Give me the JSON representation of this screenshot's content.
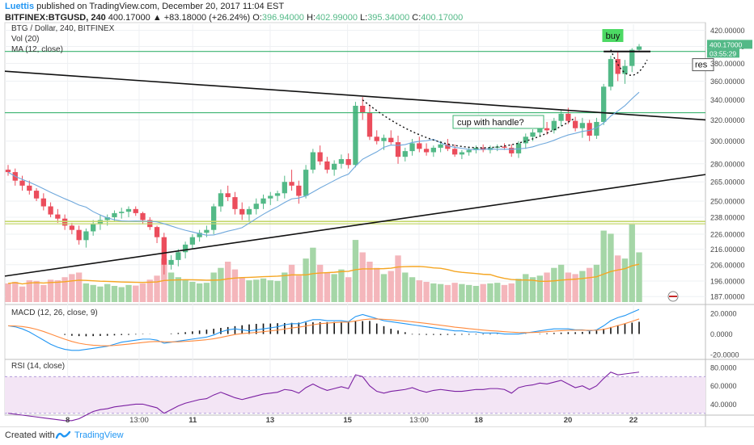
{
  "header": {
    "author": "Luettis",
    "published": "published on TradingView.com, December 20, 2017 11:04 EST",
    "symbol": "BITFINEX:BTGUSD, 240",
    "price": "400.17000",
    "change": "▲ +83.18000 (+26.24%)",
    "o_label": "O:",
    "o_value": "396.94000",
    "h_label": "H:",
    "h_value": "402.99000",
    "l_label": "L:",
    "l_value": "395.34000",
    "c_label": "C:",
    "c_value": "400.17000"
  },
  "legend": {
    "title": "BTG / Dollar, 240, BITFINEX",
    "vol": "Vol (20)",
    "ma": "MA (12, close)"
  },
  "colors": {
    "up": "#53b987",
    "down": "#eb4d5c",
    "vol_up": "#a5d6a7",
    "vol_down": "#f4b6bb",
    "ma": "#6fa8dc",
    "vol_ma": "#f5a623",
    "macd": "#2196f3",
    "signal": "#ff8a3d",
    "rsi": "#7b1fa2",
    "rsi_band": "#f3e5f5",
    "hline_green": "#3cb371",
    "hline_yellow": "#c5d86d"
  },
  "annotations": {
    "buy": "buy",
    "cup": "cup with handle?",
    "res": "res",
    "price_tag": "400.17000",
    "time_tag": "03:55:29"
  },
  "panes": {
    "macd_label": "MACD (12, 26, close, 9)",
    "rsi_label": "RSI (14, close)"
  },
  "axes": {
    "price_ticks": [
      "420.00000",
      "400.00000",
      "380.00000",
      "360.00000",
      "340.00000",
      "320.00000",
      "300.00000",
      "280.00000",
      "265.00000",
      "250.00000",
      "238.00000",
      "226.00000",
      "216.00000",
      "206.00000",
      "196.00000",
      "187.00000"
    ],
    "macd_ticks": [
      "20.0000",
      "0.0000",
      "-20.0000"
    ],
    "rsi_ticks": [
      "80.0000",
      "60.0000",
      "40.0000"
    ],
    "x_ticks": [
      "8",
      "13:00",
      "11",
      "13",
      "15",
      "13:00",
      "18",
      "20",
      "22"
    ]
  },
  "footer": {
    "created_with": "Created with",
    "brand": "TradingView"
  },
  "chart_data": {
    "type": "candlestick",
    "title": "BTG / Dollar, 240, BITFINEX",
    "scale": "log",
    "ylim": [
      183,
      428
    ],
    "candles": [
      [
        275,
        279,
        270,
        273
      ],
      [
        273,
        276,
        262,
        266
      ],
      [
        266,
        270,
        258,
        262
      ],
      [
        262,
        266,
        255,
        258
      ],
      [
        258,
        260,
        250,
        252
      ],
      [
        252,
        256,
        243,
        246
      ],
      [
        246,
        249,
        238,
        240
      ],
      [
        240,
        244,
        234,
        237
      ],
      [
        237,
        240,
        229,
        232
      ],
      [
        232,
        234,
        226,
        229
      ],
      [
        229,
        232,
        219,
        222
      ],
      [
        222,
        230,
        217,
        228
      ],
      [
        228,
        236,
        225,
        233
      ],
      [
        233,
        240,
        229,
        236
      ],
      [
        236,
        240,
        232,
        238
      ],
      [
        238,
        243,
        235,
        241
      ],
      [
        241,
        245,
        237,
        242
      ],
      [
        242,
        246,
        238,
        244
      ],
      [
        244,
        246,
        239,
        241
      ],
      [
        241,
        242,
        233,
        236
      ],
      [
        236,
        238,
        229,
        231
      ],
      [
        231,
        232,
        220,
        224
      ],
      [
        224,
        227,
        200,
        206
      ],
      [
        206,
        212,
        203,
        209
      ],
      [
        209,
        216,
        205,
        214
      ],
      [
        214,
        221,
        210,
        219
      ],
      [
        219,
        226,
        216,
        224
      ],
      [
        224,
        229,
        221,
        227
      ],
      [
        227,
        232,
        224,
        229
      ],
      [
        229,
        248,
        226,
        246
      ],
      [
        246,
        259,
        242,
        256
      ],
      [
        256,
        262,
        250,
        253
      ],
      [
        253,
        257,
        240,
        244
      ],
      [
        244,
        249,
        236,
        240
      ],
      [
        240,
        246,
        235,
        244
      ],
      [
        244,
        252,
        240,
        248
      ],
      [
        248,
        255,
        244,
        252
      ],
      [
        252,
        257,
        247,
        254
      ],
      [
        254,
        258,
        250,
        256
      ],
      [
        256,
        270,
        252,
        265
      ],
      [
        265,
        275,
        258,
        262
      ],
      [
        262,
        266,
        248,
        254
      ],
      [
        254,
        279,
        252,
        275
      ],
      [
        275,
        293,
        272,
        290
      ],
      [
        290,
        296,
        279,
        282
      ],
      [
        282,
        286,
        272,
        275
      ],
      [
        275,
        283,
        270,
        280
      ],
      [
        280,
        288,
        276,
        284
      ],
      [
        284,
        289,
        276,
        279
      ],
      [
        279,
        338,
        277,
        334
      ],
      [
        334,
        343,
        320,
        327
      ],
      [
        327,
        335,
        301,
        304
      ],
      [
        304,
        310,
        297,
        300
      ],
      [
        300,
        306,
        292,
        303
      ],
      [
        303,
        310,
        297,
        299
      ],
      [
        299,
        305,
        280,
        286
      ],
      [
        286,
        294,
        282,
        291
      ],
      [
        291,
        302,
        287,
        298
      ],
      [
        298,
        304,
        290,
        293
      ],
      [
        293,
        298,
        287,
        290
      ],
      [
        290,
        296,
        286,
        294
      ],
      [
        294,
        300,
        290,
        297
      ],
      [
        297,
        302,
        291,
        293
      ],
      [
        293,
        297,
        286,
        288
      ],
      [
        288,
        292,
        284,
        290
      ],
      [
        290,
        294,
        287,
        292
      ],
      [
        292,
        296,
        289,
        294
      ],
      [
        294,
        297,
        290,
        292
      ],
      [
        292,
        296,
        289,
        294
      ],
      [
        294,
        297,
        291,
        295
      ],
      [
        295,
        298,
        292,
        294
      ],
      [
        294,
        297,
        286,
        289
      ],
      [
        289,
        300,
        285,
        298
      ],
      [
        298,
        307,
        293,
        304
      ],
      [
        304,
        311,
        300,
        308
      ],
      [
        308,
        315,
        304,
        312
      ],
      [
        312,
        318,
        306,
        310
      ],
      [
        310,
        322,
        307,
        319
      ],
      [
        319,
        330,
        314,
        326
      ],
      [
        326,
        332,
        316,
        319
      ],
      [
        319,
        323,
        309,
        312
      ],
      [
        312,
        322,
        303,
        317
      ],
      [
        317,
        320,
        300,
        305
      ],
      [
        305,
        322,
        302,
        318
      ],
      [
        318,
        357,
        315,
        354
      ],
      [
        354,
        389,
        350,
        385
      ],
      [
        385,
        393,
        360,
        368
      ],
      [
        368,
        384,
        357,
        377
      ],
      [
        377,
        398,
        370,
        396
      ],
      [
        396,
        403,
        395,
        400
      ]
    ],
    "volume": [
      60,
      65,
      50,
      70,
      68,
      55,
      72,
      70,
      80,
      90,
      95,
      60,
      55,
      50,
      58,
      52,
      48,
      55,
      53,
      60,
      72,
      85,
      140,
      95,
      80,
      70,
      65,
      60,
      62,
      95,
      110,
      130,
      105,
      80,
      70,
      72,
      76,
      70,
      68,
      95,
      120,
      85,
      140,
      175,
      120,
      95,
      90,
      105,
      80,
      200,
      160,
      130,
      110,
      90,
      100,
      150,
      95,
      80,
      70,
      65,
      60,
      58,
      55,
      62,
      58,
      55,
      52,
      58,
      60,
      62,
      55,
      60,
      75,
      90,
      80,
      85,
      95,
      110,
      120,
      95,
      90,
      100,
      110,
      120,
      230,
      220,
      150,
      140,
      250,
      160
    ],
    "macd_histogram": [
      0,
      0,
      0,
      0,
      0,
      0,
      0,
      0,
      -0.5,
      -1,
      -1.2,
      -1.3,
      -1.2,
      -1.1,
      -1,
      -0.8,
      -0.6,
      -0.5,
      -0.3,
      -0.2,
      -0.1,
      0,
      0,
      0.3,
      0.6,
      1,
      1.5,
      2,
      2.5,
      3,
      3.5,
      4,
      4.5,
      5,
      5.5,
      5.8,
      6,
      6,
      6.2,
      6.3,
      6.4,
      6.5,
      6.6,
      6.7,
      6.8,
      6.8,
      6.9,
      7,
      7,
      7.2,
      7.4,
      7.5,
      6,
      4.5,
      3,
      2,
      1,
      -0.3,
      -0.4,
      -0.5,
      -0.5,
      -0.6,
      -0.5,
      -0.5,
      -0.4,
      -0.4,
      -0.3,
      -0.3,
      -0.3,
      -0.2,
      -0.2,
      -0.2,
      -0.1,
      -0.1,
      0,
      0.2,
      0.4,
      0.6,
      0.8,
      1,
      1,
      1.2,
      1.5,
      2,
      3,
      4,
      5,
      6,
      6.5,
      7
    ],
    "rsi": [
      30,
      29,
      28,
      27,
      26,
      25,
      24,
      23,
      22,
      22,
      24,
      28,
      32,
      34,
      35,
      37,
      38,
      39,
      40,
      40,
      38,
      36,
      30,
      34,
      38,
      41,
      43,
      45,
      46,
      50,
      53,
      50,
      47,
      45,
      47,
      49,
      51,
      52,
      53,
      56,
      55,
      52,
      58,
      62,
      58,
      55,
      57,
      59,
      57,
      72,
      70,
      60,
      54,
      52,
      54,
      55,
      56,
      58,
      55,
      53,
      55,
      56,
      55,
      54,
      54,
      55,
      56,
      56,
      57,
      57,
      56,
      52,
      58,
      60,
      61,
      63,
      62,
      64,
      66,
      62,
      58,
      60,
      56,
      60,
      68,
      75,
      72,
      73,
      74,
      75
    ],
    "horizontal_levels": [
      394,
      327,
      235
    ],
    "macd_range": [
      -24,
      28
    ],
    "rsi_range": [
      28,
      88
    ]
  }
}
